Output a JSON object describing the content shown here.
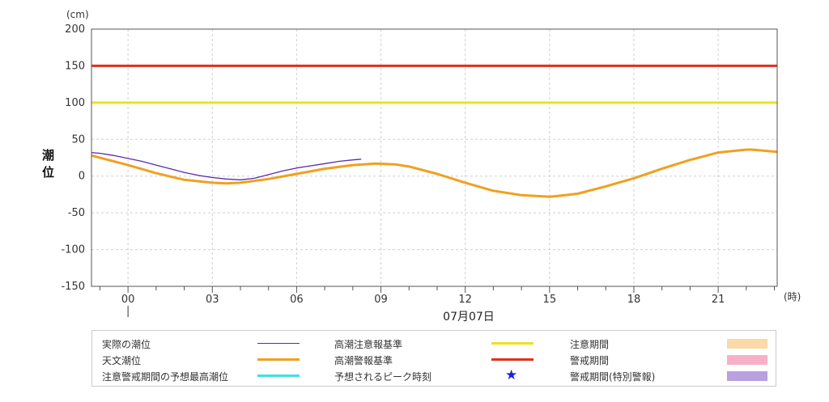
{
  "chart_data": {
    "type": "line",
    "ylabel": "潮位",
    "y_unit": "(cm)",
    "x_unit": "(時)",
    "date_label": "07月07日",
    "ylim": [
      -150,
      200
    ],
    "yticks": [
      200,
      150,
      100,
      50,
      0,
      -50,
      -100,
      -150
    ],
    "xlim": [
      -1.3,
      23.1
    ],
    "xticks": [
      0,
      3,
      6,
      9,
      12,
      15,
      18,
      21
    ],
    "xtick_labels": [
      "00",
      "03",
      "06",
      "09",
      "12",
      "15",
      "18",
      "21"
    ],
    "grid": true,
    "thresholds": [
      {
        "name": "高潮警報基準",
        "value": 150,
        "color": "#e0301e"
      },
      {
        "name": "高潮注意報基準",
        "value": 100,
        "color": "#f0e020"
      }
    ],
    "series": [
      {
        "name": "天文潮位",
        "color": "#f0a020",
        "x": [
          -1.3,
          0,
          1,
          2,
          3,
          3.5,
          4,
          5,
          6,
          7,
          8,
          8.8,
          9.5,
          10,
          11,
          12,
          13,
          14,
          15,
          15.3,
          16,
          17,
          18,
          19,
          20,
          21,
          22,
          22.2,
          23.1
        ],
        "values": [
          28,
          15,
          4,
          -5,
          -9,
          -10,
          -9,
          -4,
          3,
          10,
          15,
          17,
          16,
          13,
          3,
          -9,
          -20,
          -26,
          -28,
          -27,
          -24,
          -14,
          -3,
          10,
          22,
          32,
          36,
          36,
          33
        ]
      },
      {
        "name": "実際の潮位",
        "color": "#5a2bab",
        "x": [
          -1.3,
          -1,
          -0.5,
          0,
          0.5,
          1,
          1.5,
          2,
          2.5,
          3,
          3.5,
          4,
          4.5,
          5,
          5.5,
          6,
          6.5,
          7,
          7.5,
          8,
          8.3
        ],
        "values": [
          32,
          31,
          28,
          24,
          20,
          15,
          10,
          5,
          1,
          -2,
          -4,
          -5,
          -3,
          2,
          7,
          11,
          14,
          17,
          20,
          22,
          23
        ]
      }
    ],
    "legend": [
      {
        "label": "実際の潮位",
        "symbol": "line",
        "color": "#5a2bab"
      },
      {
        "label": "天文潮位",
        "symbol": "thickline",
        "color": "#f0a020"
      },
      {
        "label": "注意警戒期間の予想最高潮位",
        "symbol": "thickline",
        "color": "#40e0e0"
      },
      {
        "label": "高潮注意報基準",
        "symbol": "thickline",
        "color": "#f0e020"
      },
      {
        "label": "高潮警報基準",
        "symbol": "thickline",
        "color": "#e0301e"
      },
      {
        "label": "予想されるピーク時刻",
        "symbol": "star",
        "color": "#1a20e0"
      },
      {
        "label": "注意期間",
        "symbol": "box",
        "color": "#fbd9a8"
      },
      {
        "label": "警戒期間",
        "symbol": "box",
        "color": "#f8b0c8"
      },
      {
        "label": "警戒期間(特別警報)",
        "symbol": "box",
        "color": "#b9a0e0"
      }
    ]
  }
}
